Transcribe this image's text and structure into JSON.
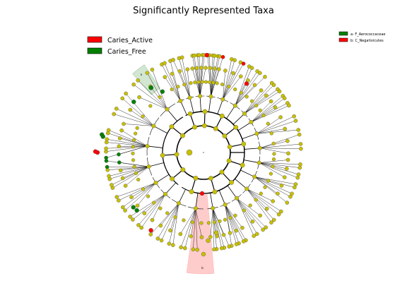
{
  "chart_data": {
    "type": "cladogram",
    "title": "Significantly Represented Taxa",
    "legend": {
      "groups": [
        {
          "name": "Caries_Active",
          "color": "#ff0000"
        },
        {
          "name": "Caries_Free",
          "color": "#008000"
        }
      ],
      "placement": "top-left"
    },
    "clade_legend": {
      "entries": [
        {
          "text": "a: F_Aerococcaceae",
          "color": "#008000"
        },
        {
          "text": "b: C_Negativicutes",
          "color": "#ff0000"
        }
      ],
      "placement": "top-right"
    },
    "highlighted_clades": [
      {
        "label": "a",
        "group": "Caries_Free",
        "color": "#008000"
      },
      {
        "label": "b",
        "group": "Caries_Active",
        "color": "#ff0000"
      }
    ],
    "node_colors": {
      "neutral": "#c8c000",
      "active": "#ff0000",
      "free": "#008000"
    }
  }
}
